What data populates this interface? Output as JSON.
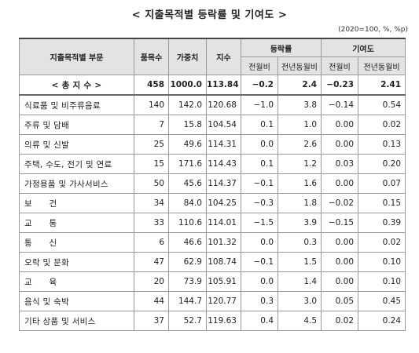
{
  "title": "< 지출목적별 등락률 및 기여도 >",
  "unit_note": "(2020=100, %, %p)",
  "headers": {
    "category": "지출목적별 부문",
    "item_count": "품목수",
    "weight": "가중치",
    "index": "지수",
    "change_rate": "등락률",
    "contribution": "기여도",
    "mom": "전월비",
    "yoy": "전년동월비",
    "mom2": "전월비",
    "yoy2": "전년동월비"
  },
  "rows": [
    {
      "name": "< 총 지 수 >",
      "items": "458",
      "weight": "1000.0",
      "index": "113.84",
      "rate_mom": "−0.2",
      "rate_yoy": "2.4",
      "contrib_mom": "−0.23",
      "contrib_yoy": "2.41"
    },
    {
      "name": "식료품 및 비주류음료",
      "items": "140",
      "weight": "142.0",
      "index": "120.68",
      "rate_mom": "−1.0",
      "rate_yoy": "3.8",
      "contrib_mom": "−0.14",
      "contrib_yoy": "0.54"
    },
    {
      "name": "주류 및 담배",
      "items": "7",
      "weight": "15.8",
      "index": "104.54",
      "rate_mom": "0.1",
      "rate_yoy": "1.0",
      "contrib_mom": "0.00",
      "contrib_yoy": "0.02"
    },
    {
      "name": "의류 및 신발",
      "items": "25",
      "weight": "49.6",
      "index": "114.31",
      "rate_mom": "0.0",
      "rate_yoy": "2.6",
      "contrib_mom": "0.00",
      "contrib_yoy": "0.13"
    },
    {
      "name": "주택, 수도, 전기 및 연료",
      "items": "15",
      "weight": "171.6",
      "index": "114.43",
      "rate_mom": "0.1",
      "rate_yoy": "1.2",
      "contrib_mom": "0.03",
      "contrib_yoy": "0.20"
    },
    {
      "name": "가정용품 및 가사서비스",
      "items": "50",
      "weight": "45.6",
      "index": "114.37",
      "rate_mom": "−0.1",
      "rate_yoy": "1.6",
      "contrib_mom": "0.00",
      "contrib_yoy": "0.07"
    },
    {
      "name": "보　　건",
      "items": "34",
      "weight": "84.0",
      "index": "104.25",
      "rate_mom": "−0.3",
      "rate_yoy": "1.8",
      "contrib_mom": "−0.02",
      "contrib_yoy": "0.15"
    },
    {
      "name": "교　　통",
      "items": "33",
      "weight": "110.6",
      "index": "114.01",
      "rate_mom": "−1.5",
      "rate_yoy": "3.9",
      "contrib_mom": "−0.15",
      "contrib_yoy": "0.39"
    },
    {
      "name": "통　　신",
      "items": "6",
      "weight": "46.6",
      "index": "101.32",
      "rate_mom": "0.0",
      "rate_yoy": "0.3",
      "contrib_mom": "0.00",
      "contrib_yoy": "0.02"
    },
    {
      "name": "오락 및 문화",
      "items": "47",
      "weight": "62.9",
      "index": "108.74",
      "rate_mom": "−0.1",
      "rate_yoy": "1.5",
      "contrib_mom": "0.00",
      "contrib_yoy": "0.10"
    },
    {
      "name": "교　　육",
      "items": "20",
      "weight": "73.9",
      "index": "105.91",
      "rate_mom": "0.0",
      "rate_yoy": "1.4",
      "contrib_mom": "0.00",
      "contrib_yoy": "0.10"
    },
    {
      "name": "음식 및 숙박",
      "items": "44",
      "weight": "144.7",
      "index": "120.77",
      "rate_mom": "0.3",
      "rate_yoy": "3.0",
      "contrib_mom": "0.05",
      "contrib_yoy": "0.45"
    },
    {
      "name": "기타 상품 및 서비스",
      "items": "37",
      "weight": "52.7",
      "index": "119.63",
      "rate_mom": "0.4",
      "rate_yoy": "4.5",
      "contrib_mom": "0.02",
      "contrib_yoy": "0.24"
    }
  ]
}
